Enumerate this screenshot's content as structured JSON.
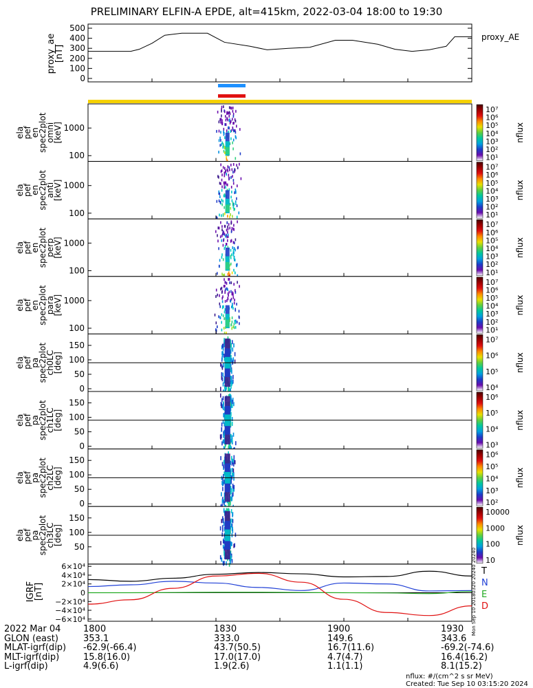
{
  "title": "PRELIMINARY ELFIN-A EPDE, alt=415km, 2022-03-04 18:00 to 19:30",
  "colors": {
    "blue_bar": "#1e90ff",
    "red_bar": "#e01010",
    "yellow_bar": "#f5d100"
  },
  "proxy_panel": {
    "ylabel": "proxy_ae [nT]",
    "ylabel_lines": [
      "proxy_ae",
      "[nT]"
    ],
    "legend": "proxy_AE",
    "yticks": [
      "500",
      "400",
      "300",
      "200",
      "100",
      "0"
    ]
  },
  "panels": [
    {
      "ylabel_lines": [
        "ela",
        "pef",
        "en",
        "spec2plot",
        "omni",
        "[keV]"
      ],
      "yticks": [
        "1000",
        "100"
      ],
      "cb_ticks": [
        "10⁷",
        "10⁶",
        "10⁵",
        "10⁴",
        "10³",
        "10²",
        "10¹"
      ],
      "cb_label": "nflux"
    },
    {
      "ylabel_lines": [
        "ela",
        "pef",
        "en",
        "spec2plot",
        "anti",
        "[keV]"
      ],
      "yticks": [
        "1000",
        "100"
      ],
      "cb_ticks": [
        "10⁷",
        "10⁶",
        "10⁵",
        "10⁴",
        "10³",
        "10²",
        "10¹"
      ],
      "cb_label": "nflux"
    },
    {
      "ylabel_lines": [
        "ela",
        "pef",
        "en",
        "spec2plot",
        "perp",
        "[keV]"
      ],
      "yticks": [
        "1000",
        "100"
      ],
      "cb_ticks": [
        "10⁷",
        "10⁶",
        "10⁵",
        "10⁴",
        "10³",
        "10²",
        "10¹"
      ],
      "cb_label": "nflux"
    },
    {
      "ylabel_lines": [
        "ela",
        "pef",
        "en",
        "spec2plot",
        "para",
        "[keV]"
      ],
      "yticks": [
        "1000",
        "100"
      ],
      "cb_ticks": [
        "10⁷",
        "10⁶",
        "10⁵",
        "10⁴",
        "10³",
        "10²",
        "10¹"
      ],
      "cb_label": "nflux"
    },
    {
      "ylabel_lines": [
        "ela",
        "pef",
        "pa",
        "spec2plot",
        "ch0LC",
        "[deg]"
      ],
      "yticks": [
        "150",
        "100",
        "50",
        "0"
      ],
      "cb_ticks": [
        "10⁷",
        "10⁶",
        "10⁵",
        "10⁴"
      ],
      "cb_label": "nflux"
    },
    {
      "ylabel_lines": [
        "ela",
        "pef",
        "pa",
        "spec2plot",
        "ch1LC",
        "[deg]"
      ],
      "yticks": [
        "150",
        "100",
        "50",
        "0"
      ],
      "cb_ticks": [
        "10⁶",
        "10⁵",
        "10⁴",
        "10³"
      ],
      "cb_label": "nflux"
    },
    {
      "ylabel_lines": [
        "ela",
        "pef",
        "pa",
        "spec2plot",
        "ch2LC",
        "[deg]"
      ],
      "yticks": [
        "150",
        "100",
        "50",
        "0"
      ],
      "cb_ticks": [
        "10⁶",
        "10⁵",
        "10⁴",
        "10³",
        "10²"
      ],
      "cb_label": "nflux"
    },
    {
      "ylabel_lines": [
        "ela",
        "pef",
        "pa",
        "spec2plot",
        "ch3LC",
        "[deg]"
      ],
      "yticks": [
        "150",
        "100",
        "50"
      ],
      "cb_ticks": [
        "10000",
        "1000",
        "100",
        "10"
      ],
      "cb_label": "nflux"
    }
  ],
  "igrf_panel": {
    "ylabel_lines": [
      "IGRF",
      "[nT]"
    ],
    "yticks": [
      "6×10⁴",
      "4×10⁴",
      "2×10⁴",
      "0",
      "−2×10⁴",
      "−4×10⁴",
      "−6×10⁴"
    ],
    "legend": [
      {
        "label": "T",
        "color": "#000000"
      },
      {
        "label": "N",
        "color": "#1f3fd6"
      },
      {
        "label": "E",
        "color": "#22aa22"
      },
      {
        "label": "D",
        "color": "#e01010"
      }
    ]
  },
  "side_stamp": "Mon Sep 10 20180320 20240 20240",
  "footer": {
    "rows": [
      {
        "label": "2022 Mar 04",
        "vals": [
          "1800",
          "1830",
          "1900",
          "1930"
        ]
      },
      {
        "label": "GLON (east)",
        "vals": [
          "353.1",
          "333.0",
          "149.6",
          "343.6"
        ]
      },
      {
        "label": "MLAT-igrf(dip)",
        "vals": [
          "-62.9(-66.4)",
          "43.7(50.5)",
          "16.7(11.6)",
          "-69.2(-74.6)"
        ]
      },
      {
        "label": "MLT-igrf(dip)",
        "vals": [
          "15.8(16.0)",
          "17.0(17.0)",
          "4.7(4.7)",
          "16.4(16.2)"
        ]
      },
      {
        "label": "L-igrf(dip)",
        "vals": [
          "4.9(6.6)",
          "1.9(2.6)",
          "1.1(1.1)",
          "8.1(15.2)"
        ]
      }
    ],
    "units_note": "nflux: #/(cm^2 s sr MeV)",
    "created": "Created: Tue Sep 10 03:15:20 2024"
  },
  "chart_data": {
    "type": "heatmap",
    "title": "PRELIMINARY ELFIN-A EPDE, alt=415km, 2022-03-04 18:00 to 19:30",
    "x_range_minutes": [
      0,
      90
    ],
    "x_tick_labels": [
      "1800",
      "1830",
      "1900",
      "1930"
    ],
    "proxy_ae": {
      "type": "line",
      "ylabel": "proxy_ae [nT]",
      "ylim": [
        0,
        500
      ],
      "x": [
        0,
        5,
        10,
        12,
        15,
        18,
        22,
        28,
        32,
        38,
        42,
        47,
        52,
        58,
        62,
        68,
        72,
        76,
        80,
        84,
        86,
        90
      ],
      "y": [
        270,
        270,
        270,
        290,
        350,
        430,
        450,
        450,
        360,
        320,
        285,
        300,
        310,
        380,
        380,
        340,
        290,
        270,
        285,
        320,
        415,
        415
      ]
    },
    "spectra": {
      "activity_window_minutes": [
        31,
        35
      ],
      "colorbar_label": "nflux",
      "energy_range_keV": [
        60,
        7000
      ],
      "pitch_angle_range_deg": [
        0,
        180
      ]
    },
    "igrf": {
      "type": "line",
      "ylabel": "IGRF [nT]",
      "ylim": [
        -65000,
        65000
      ],
      "series": [
        {
          "name": "T",
          "x": [
            0,
            10,
            20,
            30,
            40,
            50,
            60,
            70,
            80,
            90
          ],
          "values": [
            30000,
            26000,
            33000,
            42000,
            46000,
            43000,
            36000,
            37000,
            49000,
            38000
          ]
        },
        {
          "name": "N",
          "x": [
            0,
            10,
            20,
            30,
            40,
            50,
            60,
            70,
            80,
            90
          ],
          "values": [
            14000,
            18000,
            26000,
            22000,
            12000,
            5000,
            22000,
            20000,
            4000,
            5000
          ]
        },
        {
          "name": "E",
          "x": [
            0,
            10,
            20,
            30,
            40,
            50,
            60,
            70,
            80,
            90
          ],
          "values": [
            0,
            0,
            500,
            1000,
            1000,
            500,
            0,
            -500,
            -2000,
            3000
          ]
        },
        {
          "name": "D",
          "x": [
            0,
            10,
            20,
            30,
            40,
            50,
            60,
            70,
            80,
            90
          ],
          "values": [
            -26000,
            -16000,
            10000,
            38000,
            44000,
            24000,
            -15000,
            -45000,
            -52000,
            -30000
          ]
        }
      ]
    }
  }
}
